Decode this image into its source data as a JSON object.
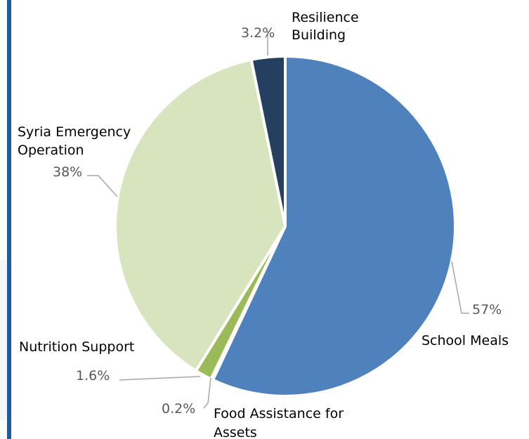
{
  "colors": {
    "page_background": "#ffffff",
    "frame_bar": "#1f5c99",
    "frame_panel": "#f2f7fc",
    "leader_line": "#a6a6a6",
    "slice_border": "#ffffff"
  },
  "chart_data": {
    "type": "pie",
    "title": "",
    "start_angle_deg": 0,
    "direction": "clockwise",
    "slices": [
      {
        "category": "School Meals",
        "value": 57,
        "label": "57%",
        "color": "#4f81bd"
      },
      {
        "category": "Food Assistance for Assets",
        "value": 0.2,
        "label": "0.2%",
        "color": "#c0504d"
      },
      {
        "category": "Nutrition Support",
        "value": 1.6,
        "label": "1.6%",
        "color": "#9bbb59"
      },
      {
        "category": "Syria Emergency Operation",
        "value": 38,
        "label": "38%",
        "color": "#d7e4bd"
      },
      {
        "category": "Resilience Building",
        "value": 3.2,
        "label": "3.2%",
        "color": "#243f60"
      }
    ]
  }
}
